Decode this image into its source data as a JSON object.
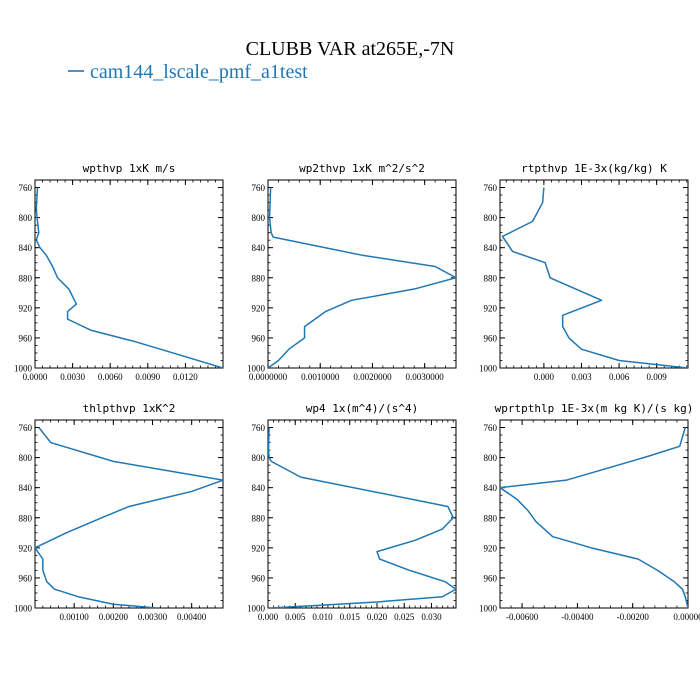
{
  "figure": {
    "title": "CLUBB VAR at265E,-7N",
    "legend_label": "cam144_lscale_pmf_a1test",
    "line_color": "#1f77b4"
  },
  "chart_data": [
    {
      "type": "line",
      "title": "wpthvp   1xK m/s",
      "xlim": [
        0,
        0.015
      ],
      "ylim": [
        1000,
        750
      ],
      "xticks": [
        0,
        0.003,
        0.006,
        0.009,
        0.012
      ],
      "xtick_labels": [
        "0.0000",
        "0.0030",
        "0.0060",
        "0.0090",
        "0.0120"
      ],
      "yticks": [
        760,
        800,
        840,
        880,
        920,
        960,
        1000
      ],
      "ytick_labels": [
        "760",
        "800",
        "840",
        "880",
        "920",
        "960",
        "1000"
      ],
      "series": [
        {
          "x": [
            0.0002,
            0.0001,
            0.0003,
            0.0001,
            0.0004,
            0.0009,
            0.0014,
            0.0018,
            0.0027,
            0.0033,
            0.0026,
            0.0026,
            0.0045,
            0.008,
            0.011,
            0.015
          ],
          "y": [
            760,
            790,
            820,
            830,
            840,
            850,
            865,
            880,
            895,
            915,
            925,
            935,
            950,
            965,
            980,
            1000
          ]
        }
      ]
    },
    {
      "type": "line",
      "title": "wp2thvp   1xK m^2/s^2",
      "xlim": [
        0,
        0.0036
      ],
      "ylim": [
        1000,
        750
      ],
      "xticks": [
        0,
        0.001,
        0.002,
        0.003
      ],
      "xtick_labels": [
        "0.0000000",
        "0.0010000",
        "0.0020000",
        "0.0030000"
      ],
      "yticks": [
        760,
        800,
        840,
        880,
        920,
        960,
        1000
      ],
      "ytick_labels": [
        "760",
        "800",
        "840",
        "880",
        "920",
        "960",
        "1000"
      ],
      "series": [
        {
          "x": [
            5e-05,
            3e-05,
            6e-05,
            0.0001,
            0.0018,
            0.0032,
            0.0036,
            0.0028,
            0.0016,
            0.0011,
            0.0007,
            0.0007,
            0.0004,
            0.0002,
            0.0
          ],
          "y": [
            760,
            800,
            820,
            826,
            850,
            865,
            880,
            895,
            910,
            925,
            945,
            960,
            975,
            990,
            1000
          ]
        }
      ]
    },
    {
      "type": "line",
      "title": "rtpthvp   1E-3x(kg/kg) K",
      "xlim": [
        -0.0035,
        0.0115
      ],
      "ylim": [
        1000,
        750
      ],
      "xticks": [
        0,
        0.003,
        0.006,
        0.009
      ],
      "xtick_labels": [
        "0.000",
        "0.003",
        "0.006",
        "0.009"
      ],
      "yticks": [
        760,
        800,
        840,
        880,
        920,
        960,
        1000
      ],
      "ytick_labels": [
        "760",
        "800",
        "840",
        "880",
        "920",
        "960",
        "1000"
      ],
      "series": [
        {
          "x": [
            0.0,
            -0.0001,
            -0.0009,
            -0.0033,
            -0.0025,
            0.0001,
            0.0005,
            0.0046,
            0.0015,
            0.0015,
            0.002,
            0.003,
            0.006,
            0.0115
          ],
          "y": [
            760,
            780,
            805,
            825,
            845,
            860,
            880,
            910,
            930,
            945,
            960,
            975,
            990,
            1000
          ]
        }
      ]
    },
    {
      "type": "line",
      "title": "thlpthvp   1xK^2",
      "xlim": [
        0,
        0.0048
      ],
      "ylim": [
        1000,
        750
      ],
      "xticks": [
        0.001,
        0.002,
        0.003,
        0.004
      ],
      "xtick_labels": [
        "0.00100",
        "0.00200",
        "0.00300",
        "0.00400"
      ],
      "yticks": [
        760,
        800,
        840,
        880,
        920,
        960,
        1000
      ],
      "ytick_labels": [
        "760",
        "800",
        "840",
        "880",
        "920",
        "960",
        "1000"
      ],
      "series": [
        {
          "x": [
            0.0001,
            0.0004,
            0.002,
            0.0048,
            0.004,
            0.0024,
            0.0017,
            0.0008,
            0.0,
            0.0002,
            0.0002,
            0.0003,
            0.0005,
            0.0011,
            0.002,
            0.0031
          ],
          "y": [
            760,
            780,
            805,
            830,
            845,
            865,
            880,
            900,
            920,
            935,
            950,
            965,
            975,
            985,
            995,
            1000
          ]
        }
      ]
    },
    {
      "type": "line",
      "title": "wp4   1x(m^4)/(s^4)",
      "xlim": [
        0,
        0.0345
      ],
      "ylim": [
        1000,
        750
      ],
      "xticks": [
        0,
        0.005,
        0.01,
        0.015,
        0.02,
        0.025,
        0.03
      ],
      "xtick_labels": [
        "0.000",
        "0.005",
        "0.010",
        "0.015",
        "0.020",
        "0.025",
        "0.030"
      ],
      "yticks": [
        760,
        800,
        840,
        880,
        920,
        960,
        1000
      ],
      "ytick_labels": [
        "760",
        "800",
        "840",
        "880",
        "920",
        "960",
        "1000"
      ],
      "series": [
        {
          "x": [
            0.0002,
            0.0001,
            0.0002,
            0.0006,
            0.006,
            0.033,
            0.034,
            0.032,
            0.027,
            0.02,
            0.0205,
            0.026,
            0.0325,
            0.0345,
            0.032,
            0.02,
            0.008,
            0.0005
          ],
          "y": [
            760,
            790,
            800,
            805,
            826,
            865,
            880,
            895,
            910,
            925,
            935,
            950,
            965,
            975,
            985,
            992,
            997,
            1000
          ]
        }
      ]
    },
    {
      "type": "line",
      "title": "wprtpthlp   1E-3x(m kg K)/(s kg)",
      "xlim": [
        -0.0068,
        0.0
      ],
      "ylim": [
        1000,
        750
      ],
      "xticks": [
        -0.006,
        -0.004,
        -0.002,
        0.0
      ],
      "xtick_labels": [
        "-0.00600",
        "-0.00400",
        "-0.00200",
        "0.00000"
      ],
      "yticks": [
        760,
        800,
        840,
        880,
        920,
        960,
        1000
      ],
      "ytick_labels": [
        "760",
        "800",
        "840",
        "880",
        "920",
        "960",
        "1000"
      ],
      "series": [
        {
          "x": [
            -0.0001,
            -0.0003,
            -0.0016,
            -0.0044,
            -0.0068,
            -0.0062,
            -0.0058,
            -0.0055,
            -0.0049,
            -0.0035,
            -0.0018,
            -0.0011,
            -0.0005,
            -0.0002,
            -0.0001,
            0.0
          ],
          "y": [
            760,
            785,
            800,
            830,
            840,
            855,
            870,
            885,
            905,
            920,
            935,
            950,
            965,
            975,
            985,
            1000
          ]
        }
      ]
    }
  ]
}
